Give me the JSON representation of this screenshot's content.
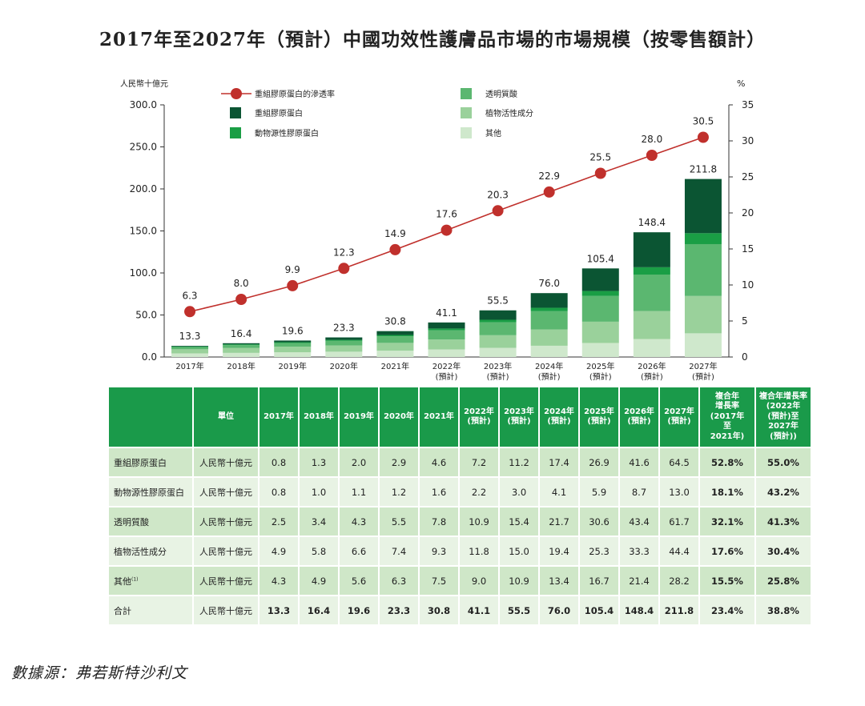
{
  "title": "2017年至2027年（預計）中國功效性護膚品市場的市場規模（按零售額計）",
  "source": "數據源：弗若斯特沙利文",
  "chart_data": {
    "type": "bar",
    "stacked": true,
    "categories": [
      "2017年",
      "2018年",
      "2019年",
      "2020年",
      "2021年",
      "2022年",
      "2023年",
      "2024年",
      "2025年",
      "2026年",
      "2027年"
    ],
    "category_sub": [
      "",
      "",
      "",
      "",
      "",
      "(預計)",
      "(預計)",
      "(預計)",
      "(預計)",
      "(預計)",
      "(預計)"
    ],
    "ylabel_left": "人民幣十億元",
    "ylabel_right": "%",
    "ylim_left": [
      0,
      300
    ],
    "ylim_right": [
      0,
      35
    ],
    "yticks_left": [
      "0.0",
      "50.0",
      "100.0",
      "150.0",
      "200.0",
      "250.0",
      "300.0"
    ],
    "yticks_right": [
      "0",
      "5",
      "10",
      "15",
      "20",
      "25",
      "30",
      "35"
    ],
    "series": [
      {
        "name": "其他",
        "color": "#cfe8cc",
        "values": [
          4.3,
          4.9,
          5.6,
          6.3,
          7.5,
          9.0,
          10.9,
          13.4,
          16.7,
          21.4,
          28.2
        ]
      },
      {
        "name": "植物活性成分",
        "color": "#9ad19b",
        "values": [
          4.9,
          5.8,
          6.6,
          7.4,
          9.3,
          11.8,
          15.0,
          19.4,
          25.3,
          33.3,
          44.4
        ]
      },
      {
        "name": "透明質酸",
        "color": "#5bb770",
        "values": [
          2.5,
          3.4,
          4.3,
          5.5,
          7.8,
          10.9,
          15.4,
          21.7,
          30.6,
          43.4,
          61.7
        ]
      },
      {
        "name": "動物源性膠原蛋白",
        "color": "#1a9e45",
        "values": [
          0.8,
          1.0,
          1.1,
          1.2,
          1.6,
          2.2,
          3.0,
          4.1,
          5.9,
          8.7,
          13.0
        ]
      },
      {
        "name": "重組膠原蛋白",
        "color": "#0b5533",
        "values": [
          0.8,
          1.3,
          2.0,
          2.9,
          4.6,
          7.2,
          11.2,
          17.4,
          26.9,
          41.6,
          64.5
        ]
      }
    ],
    "totals": [
      "13.3",
      "16.4",
      "19.6",
      "23.3",
      "30.8",
      "41.1",
      "55.5",
      "76.0",
      "105.4",
      "148.4",
      "211.8"
    ],
    "line": {
      "name": "重組膠原蛋白的滲透率",
      "color": "#c0302c",
      "values": [
        6.3,
        8.0,
        9.9,
        12.3,
        14.9,
        17.6,
        20.3,
        22.9,
        25.5,
        28.0,
        30.5
      ],
      "labels": [
        "6.3",
        "8.0",
        "9.9",
        "12.3",
        "14.9",
        "17.6",
        "20.3",
        "22.9",
        "25.5",
        "28.0",
        "30.5"
      ]
    },
    "legend": [
      {
        "name": "重組膠原蛋白的滲透率",
        "kind": "line",
        "color": "#c0302c"
      },
      {
        "name": "重組膠原蛋白",
        "kind": "box",
        "color": "#0b5533"
      },
      {
        "name": "動物源性膠原蛋白",
        "kind": "box",
        "color": "#1a9e45"
      },
      {
        "name": "透明質酸",
        "kind": "box",
        "color": "#5bb770"
      },
      {
        "name": "植物活性成分",
        "kind": "box",
        "color": "#9ad19b"
      },
      {
        "name": "其他",
        "kind": "box",
        "color": "#cfe8cc"
      }
    ]
  },
  "table": {
    "header": [
      "",
      "單位",
      "2017年",
      "2018年",
      "2019年",
      "2020年",
      "2021年",
      "2022年\n(預計)",
      "2023年\n(預計)",
      "2024年\n(預計)",
      "2025年\n(預計)",
      "2026年\n(預計)",
      "2027年\n(預計)",
      "複合年\n增長率\n(2017年\n至\n2021年)",
      "複合年增長率\n(2022年\n(預計)至\n2027年\n(預計))"
    ],
    "rows": [
      {
        "label": "重組膠原蛋白",
        "unit": "人民幣十億元",
        "values": [
          "0.8",
          "1.3",
          "2.0",
          "2.9",
          "4.6",
          "7.2",
          "11.2",
          "17.4",
          "26.9",
          "41.6",
          "64.5"
        ],
        "cagr1": "52.8%",
        "cagr2": "55.0%"
      },
      {
        "label": "動物源性膠原蛋白",
        "unit": "人民幣十億元",
        "values": [
          "0.8",
          "1.0",
          "1.1",
          "1.2",
          "1.6",
          "2.2",
          "3.0",
          "4.1",
          "5.9",
          "8.7",
          "13.0"
        ],
        "cagr1": "18.1%",
        "cagr2": "43.2%"
      },
      {
        "label": "透明質酸",
        "unit": "人民幣十億元",
        "values": [
          "2.5",
          "3.4",
          "4.3",
          "5.5",
          "7.8",
          "10.9",
          "15.4",
          "21.7",
          "30.6",
          "43.4",
          "61.7"
        ],
        "cagr1": "32.1%",
        "cagr2": "41.3%"
      },
      {
        "label": "植物活性成分",
        "unit": "人民幣十億元",
        "values": [
          "4.9",
          "5.8",
          "6.6",
          "7.4",
          "9.3",
          "11.8",
          "15.0",
          "19.4",
          "25.3",
          "33.3",
          "44.4"
        ],
        "cagr1": "17.6%",
        "cagr2": "30.4%"
      },
      {
        "label": "其他",
        "label_sup": "(1)",
        "unit": "人民幣十億元",
        "values": [
          "4.3",
          "4.9",
          "5.6",
          "6.3",
          "7.5",
          "9.0",
          "10.9",
          "13.4",
          "16.7",
          "21.4",
          "28.2"
        ],
        "cagr1": "15.5%",
        "cagr2": "25.8%"
      },
      {
        "label": "合計",
        "unit": "人民幣十億元",
        "values": [
          "13.3",
          "16.4",
          "19.6",
          "23.3",
          "30.8",
          "41.1",
          "55.5",
          "76.0",
          "105.4",
          "148.4",
          "211.8"
        ],
        "cagr1": "23.4%",
        "cagr2": "38.8%"
      }
    ]
  }
}
